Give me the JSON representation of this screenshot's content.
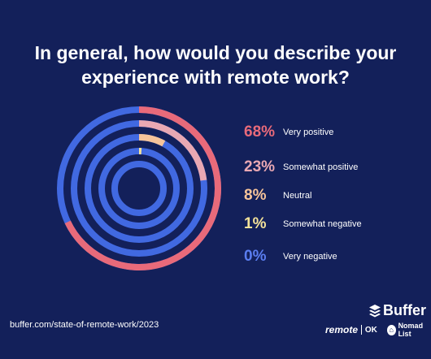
{
  "title": "In general, how would you describe your experience with remote work?",
  "footer": {
    "url": "buffer.com/state-of-remote-work/2023",
    "buffer_brand": "Buffer",
    "remote_brand": "remote",
    "ok_brand": "OK",
    "nomad_brand": "Nomad List"
  },
  "colors": {
    "background": "#13205a",
    "track": "#4169e1",
    "very_positive": "#e86a7a",
    "somewhat_positive": "#e9a8b3",
    "neutral": "#f7c49a",
    "somewhat_negative": "#f5e39a",
    "very_negative": "#5a7df0"
  },
  "chart_data": {
    "type": "radial-bar",
    "series": [
      {
        "label": "Very positive",
        "percent": 68,
        "percent_label": "68%",
        "color": "#e86a7a"
      },
      {
        "label": "Somewhat positive",
        "percent": 23,
        "percent_label": "23%",
        "color": "#e9a8b3"
      },
      {
        "label": "Neutral",
        "percent": 8,
        "percent_label": "8%",
        "color": "#f7c49a"
      },
      {
        "label": "Somewhat negative",
        "percent": 1,
        "percent_label": "1%",
        "color": "#f5e39a"
      },
      {
        "label": "Very negative",
        "percent": 0,
        "percent_label": "0%",
        "color": "#5a7df0"
      }
    ]
  }
}
